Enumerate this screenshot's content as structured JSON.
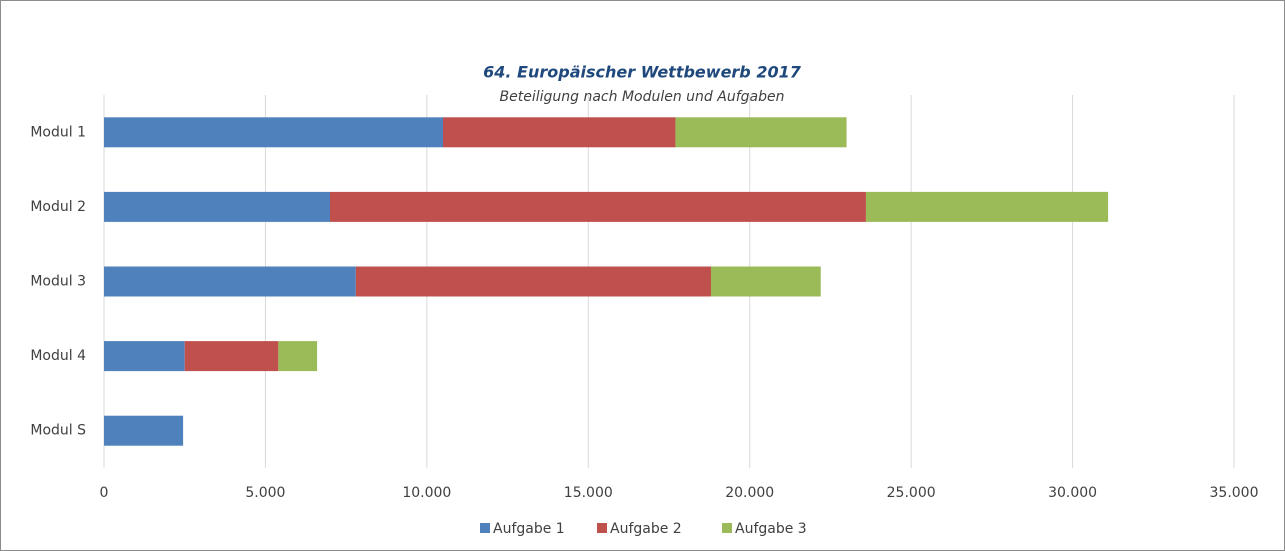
{
  "chart_data": {
    "type": "stacked-barh",
    "title": "64. Europäischer Wettbewerb 2017",
    "subtitle": "Beteiligung nach Modulen und Aufgaben",
    "categories": [
      "Modul 1",
      "Modul 2",
      "Modul 3",
      "Modul 4",
      "Modul S"
    ],
    "series": [
      {
        "name": "Aufgabe 1",
        "color": "#4f81bd",
        "values": [
          10500,
          7000,
          7800,
          2500,
          2450
        ]
      },
      {
        "name": "Aufgabe 2",
        "color": "#c0504d",
        "values": [
          7200,
          16600,
          11000,
          2900,
          0
        ]
      },
      {
        "name": "Aufgabe 3",
        "color": "#9bbb59",
        "values": [
          5300,
          7500,
          3400,
          1200,
          0
        ]
      }
    ],
    "xlim": [
      0,
      35000
    ],
    "xticks": [
      0,
      {
        "value": 5000,
        "label": "5.000"
      },
      {
        "value": 10000,
        "label": "10.000"
      },
      {
        "value": 15000,
        "label": "15.000"
      },
      {
        "value": 20000,
        "label": "20.000"
      },
      {
        "value": 25000,
        "label": "25.000"
      },
      {
        "value": 30000,
        "label": "30.000"
      },
      {
        "value": 35000,
        "label": "35.000"
      }
    ],
    "grid": true,
    "legend": "bottom"
  }
}
